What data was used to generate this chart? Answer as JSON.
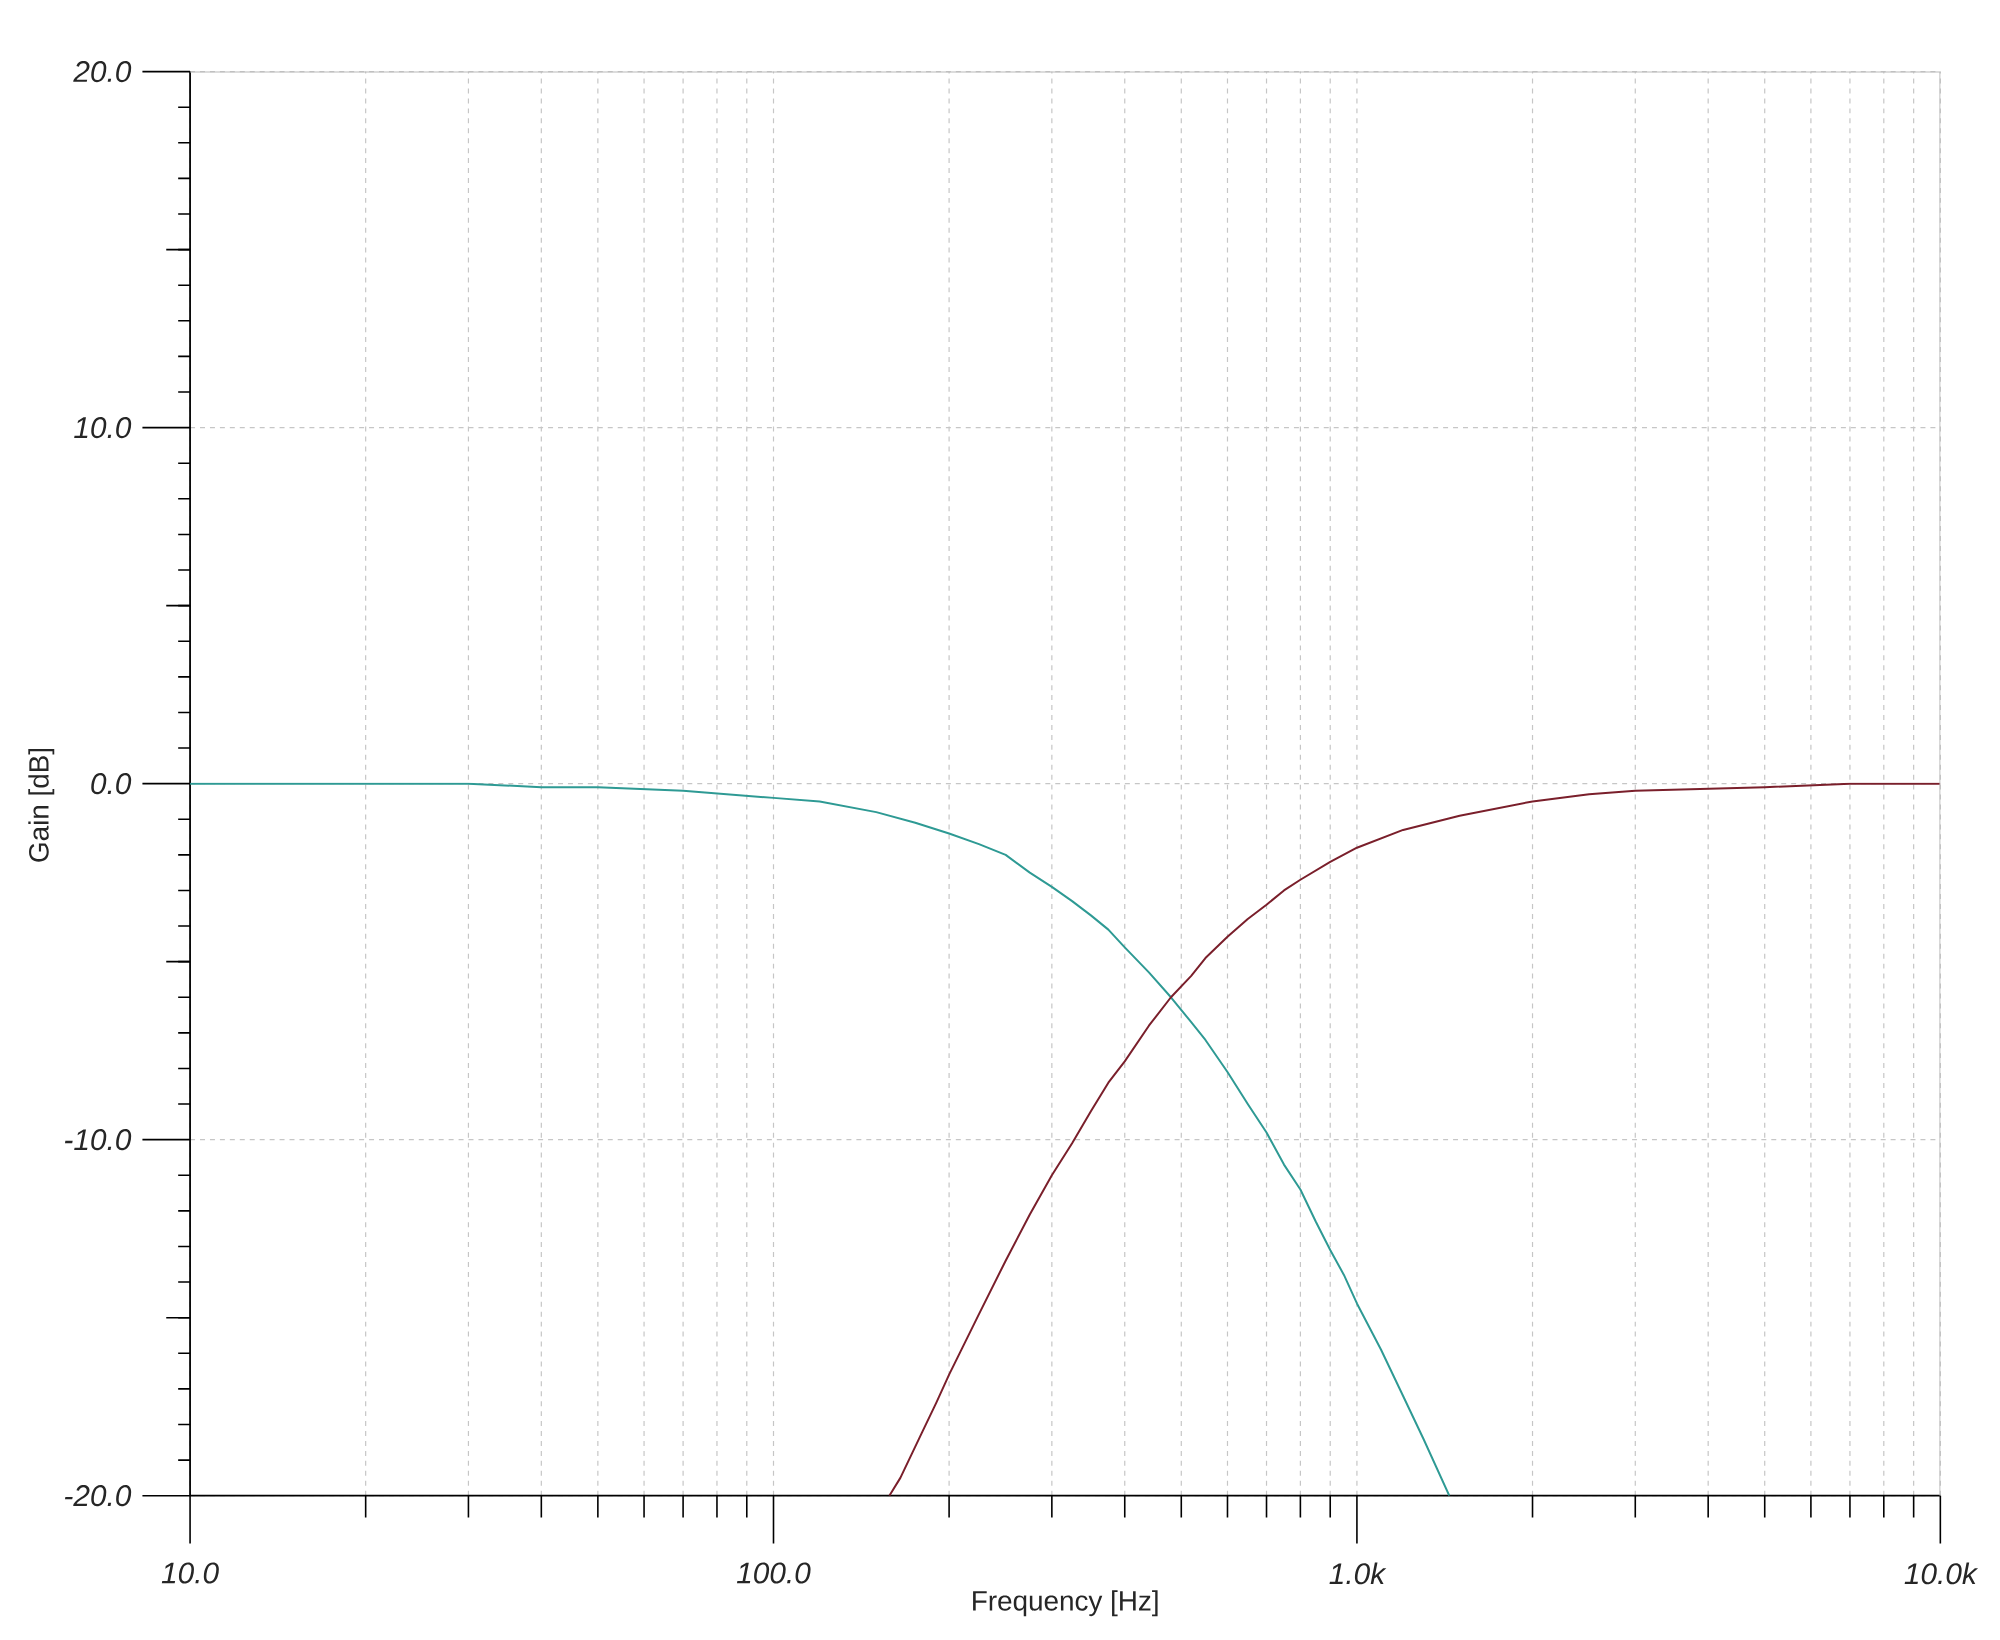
{
  "chart_data": {
    "type": "line",
    "xlabel": "Frequency [Hz]",
    "ylabel": "Gain [dB]",
    "log": "x",
    "xlim": [
      10,
      10000
    ],
    "ylim": [
      -20,
      20
    ],
    "xticks": [
      {
        "value": 10,
        "label": "10.0"
      },
      {
        "value": 100,
        "label": "100.0"
      },
      {
        "value": 1000,
        "label": "1.0k"
      },
      {
        "value": 10000,
        "label": "10.0k"
      }
    ],
    "yticks": [
      {
        "value": 20,
        "label": "20.0"
      },
      {
        "value": 15,
        "label": null
      },
      {
        "value": 10,
        "label": "10.0"
      },
      {
        "value": 5,
        "label": null
      },
      {
        "value": 0,
        "label": "0.0"
      },
      {
        "value": -5,
        "label": null
      },
      {
        "value": -10,
        "label": "-10.0"
      },
      {
        "value": -15,
        "label": null
      },
      {
        "value": -20,
        "label": "-20.0"
      }
    ],
    "grid": true,
    "marker": "none",
    "line_style": "solid",
    "series": [
      {
        "color": "#2e9a94",
        "x": [
          10,
          20,
          30,
          40,
          50,
          70,
          100,
          120,
          150,
          175,
          200,
          225,
          250,
          275,
          300,
          325,
          350,
          375,
          400,
          440,
          480,
          520,
          550,
          600,
          650,
          700,
          750,
          800,
          850,
          900,
          950,
          1000,
          1100,
          1200,
          1300,
          1440
        ],
        "values": [
          0.0,
          0.0,
          0.0,
          -0.1,
          -0.1,
          -0.2,
          -0.4,
          -0.5,
          -0.8,
          -1.1,
          -1.4,
          -1.7,
          -2.0,
          -2.5,
          -2.9,
          -3.3,
          -3.7,
          -4.1,
          -4.6,
          -5.3,
          -6.0,
          -6.7,
          -7.2,
          -8.1,
          -9.0,
          -9.8,
          -10.7,
          -11.4,
          -12.3,
          -13.1,
          -13.8,
          -14.6,
          -15.9,
          -17.2,
          -18.4,
          -20.0
        ]
      },
      {
        "color": "#7a1f2b",
        "x": [
          158,
          165,
          180,
          190,
          200,
          225,
          250,
          275,
          300,
          325,
          350,
          375,
          400,
          440,
          480,
          520,
          550,
          600,
          650,
          700,
          750,
          800,
          900,
          1000,
          1200,
          1500,
          2000,
          2500,
          3000,
          5000,
          7000,
          10000
        ],
        "values": [
          -20.0,
          -19.5,
          -18.2,
          -17.4,
          -16.6,
          -14.9,
          -13.4,
          -12.1,
          -11.0,
          -10.1,
          -9.2,
          -8.4,
          -7.8,
          -6.8,
          -6.0,
          -5.4,
          -4.9,
          -4.3,
          -3.8,
          -3.4,
          -3.0,
          -2.7,
          -2.2,
          -1.8,
          -1.3,
          -0.9,
          -0.5,
          -0.3,
          -0.2,
          -0.1,
          0.0,
          0.0
        ]
      }
    ]
  }
}
